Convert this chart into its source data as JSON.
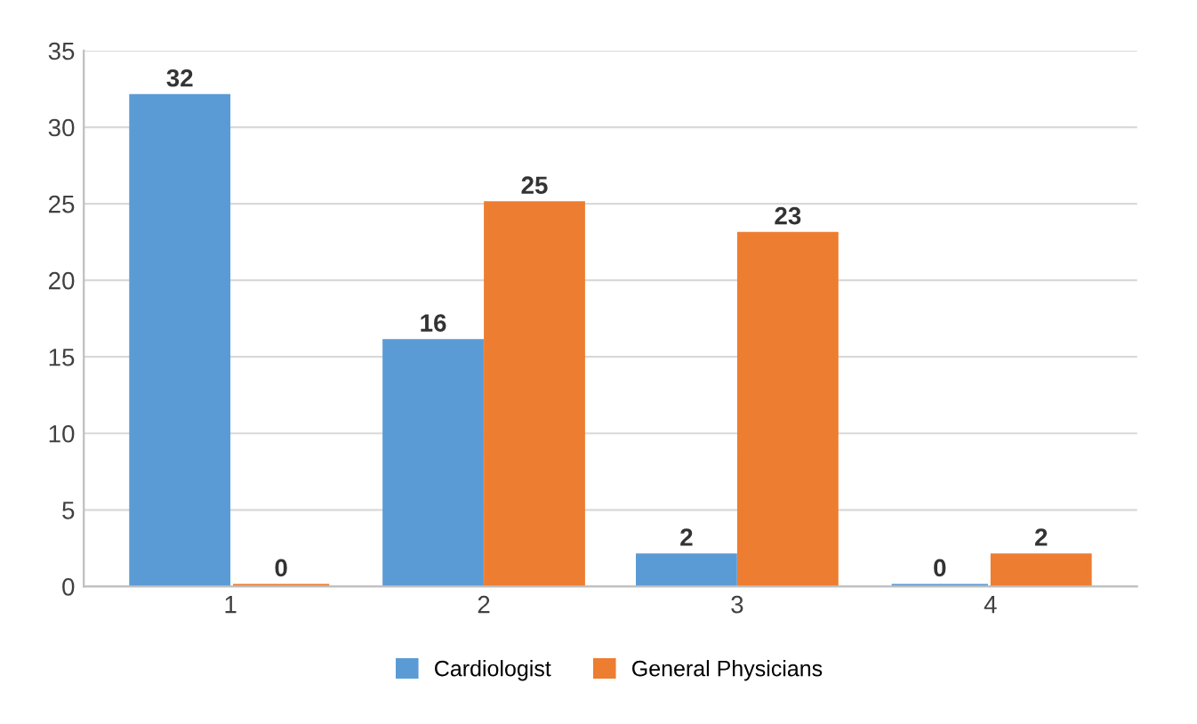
{
  "chart_data": {
    "type": "bar",
    "categories": [
      "1",
      "2",
      "3",
      "4"
    ],
    "series": [
      {
        "name": "Cardiologist",
        "color": "#5b9bd5",
        "values": [
          32,
          16,
          2,
          0
        ]
      },
      {
        "name": "General Physicians",
        "color": "#ed7d31",
        "values": [
          0,
          25,
          23,
          2
        ]
      }
    ],
    "ylim": [
      0,
      35
    ],
    "yticks": [
      0,
      5,
      10,
      15,
      20,
      25,
      30,
      35
    ],
    "grid": "y",
    "legend": "bottom",
    "data_labels": true
  }
}
